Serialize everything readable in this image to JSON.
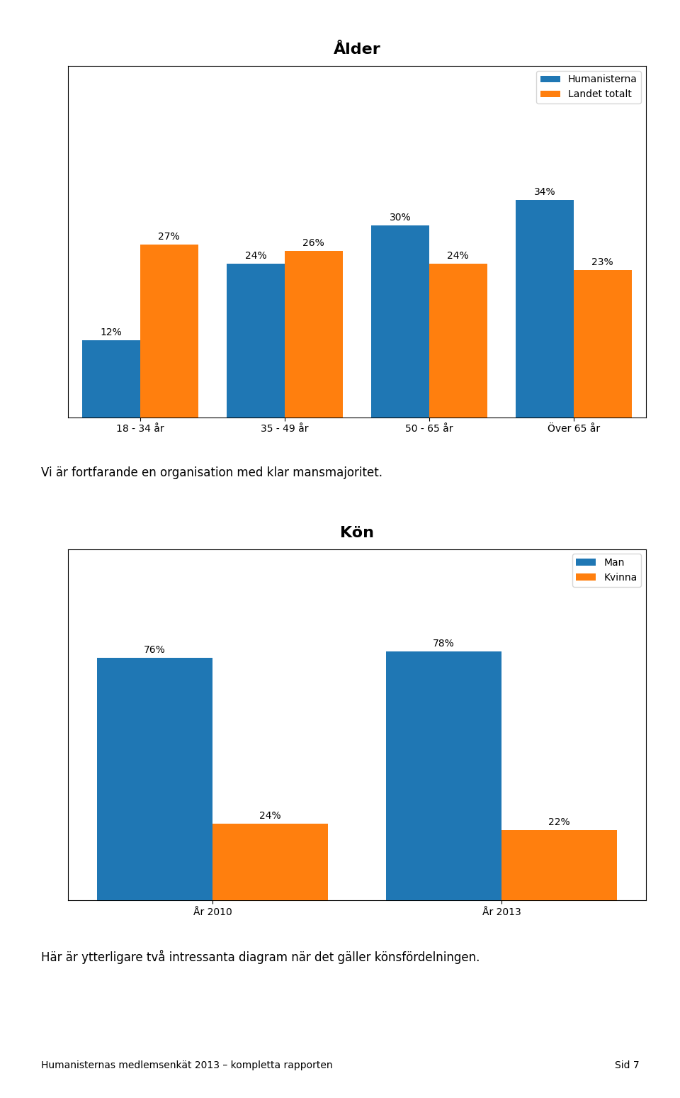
{
  "chart_data": [
    {
      "type": "bar",
      "title": "Ålder",
      "categories": [
        "18 - 34 år",
        "35 - 49 år",
        "50 - 65 år",
        "Över 65 år"
      ],
      "series": [
        {
          "name": "Humanisterna",
          "values": [
            12,
            24,
            30,
            34
          ],
          "value_labels": [
            "12%",
            "24%",
            "30%",
            "34%"
          ]
        },
        {
          "name": "Landet totalt",
          "values": [
            27,
            26,
            24,
            23
          ],
          "value_labels": [
            "27%",
            "26%",
            "24%",
            "23%"
          ]
        }
      ],
      "ylim": [
        0,
        55
      ],
      "tick_labels": "x",
      "data_labels": true,
      "legend": "upper right"
    },
    {
      "type": "bar",
      "title": "Kön",
      "categories": [
        "År 2010",
        "År 2013"
      ],
      "series": [
        {
          "name": "Man",
          "values": [
            76,
            78
          ],
          "value_labels": [
            "76%",
            "78%"
          ]
        },
        {
          "name": "Kvinna",
          "values": [
            24,
            22
          ],
          "value_labels": [
            "24%",
            "22%"
          ]
        }
      ],
      "ylim": [
        0,
        110
      ],
      "tick_labels": "x",
      "data_labels": true,
      "legend": "upper right"
    }
  ],
  "annotations": [
    "Vi är fortfarande en organisation med klar mansmajoritet.",
    "Här är ytterligare två intressanta diagram när det gäller könsfördelningen.",
    "Humanisternas medlemsenkät 2013 – kompletta rapporten",
    "Sid 7"
  ]
}
